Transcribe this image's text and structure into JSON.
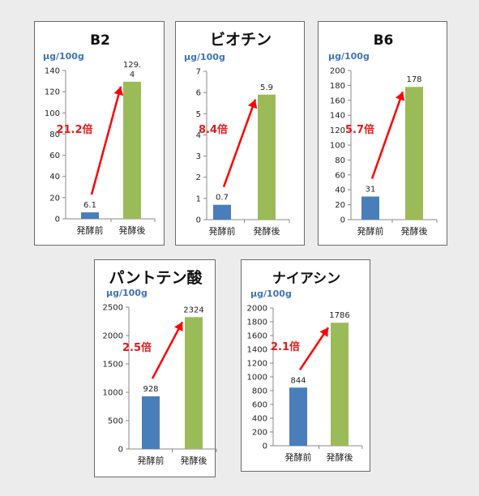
{
  "colors": {
    "before_bar": "#4a7ebb",
    "after_bar": "#9bbb59",
    "arrow": "#ff0000",
    "unit_text": "#3f74b8"
  },
  "chart_data": [
    {
      "type": "bar",
      "title": "B2",
      "unit": "μg/100g",
      "categories": [
        "発酵前",
        "発酵後"
      ],
      "values": [
        6.1,
        129.4
      ],
      "data_labels": [
        "6.1",
        "129.\n4"
      ],
      "ylim": [
        0,
        140
      ],
      "yticks": [
        0,
        20,
        40,
        60,
        80,
        100,
        120,
        140
      ],
      "ratio_label": "21.2倍"
    },
    {
      "type": "bar",
      "title": "ビオチン",
      "unit": "μg/100g",
      "categories": [
        "発酵前",
        "発酵後"
      ],
      "values": [
        0.7,
        5.9
      ],
      "data_labels": [
        "0.7",
        "5.9"
      ],
      "ylim": [
        0,
        7
      ],
      "yticks": [
        0,
        1,
        2,
        3,
        4,
        5,
        6,
        7
      ],
      "ratio_label": "8.4倍"
    },
    {
      "type": "bar",
      "title": "B6",
      "unit": "μg/100g",
      "categories": [
        "発酵前",
        "発酵後"
      ],
      "values": [
        31,
        178
      ],
      "data_labels": [
        "31",
        "178"
      ],
      "ylim": [
        0,
        200
      ],
      "yticks": [
        0,
        20,
        40,
        60,
        80,
        100,
        120,
        140,
        160,
        180,
        200
      ],
      "ratio_label": "5.7倍"
    },
    {
      "type": "bar",
      "title": "パントテン酸",
      "unit": "μg/100g",
      "categories": [
        "発酵前",
        "発酵後"
      ],
      "values": [
        928,
        2324
      ],
      "data_labels": [
        "928",
        "2324"
      ],
      "ylim": [
        0,
        2500
      ],
      "yticks": [
        0,
        500,
        1000,
        1500,
        2000,
        2500
      ],
      "ratio_label": "2.5倍"
    },
    {
      "type": "bar",
      "title": "ナイアシン",
      "unit": "μg/100g",
      "categories": [
        "発酵前",
        "発酵後"
      ],
      "values": [
        844,
        1786
      ],
      "data_labels": [
        "844",
        "1786"
      ],
      "ylim": [
        0,
        2000
      ],
      "yticks": [
        0,
        200,
        400,
        600,
        800,
        1000,
        1200,
        1400,
        1600,
        1800,
        2000
      ],
      "ratio_label": "2.1倍"
    }
  ]
}
